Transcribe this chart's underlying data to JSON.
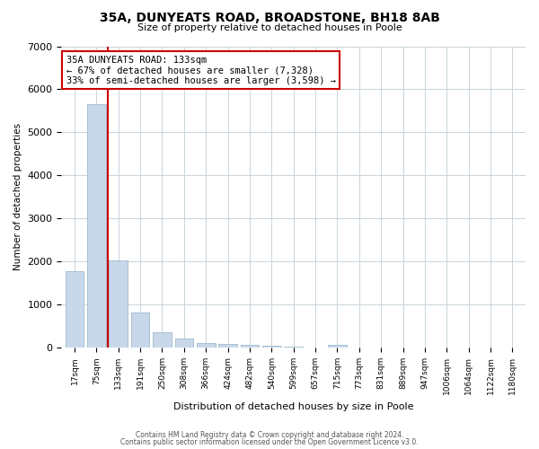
{
  "title": "35A, DUNYEATS ROAD, BROADSTONE, BH18 8AB",
  "subtitle": "Size of property relative to detached houses in Poole",
  "xlabel": "Distribution of detached houses by size in Poole",
  "ylabel": "Number of detached properties",
  "bar_labels": [
    "17sqm",
    "75sqm",
    "133sqm",
    "191sqm",
    "250sqm",
    "308sqm",
    "366sqm",
    "424sqm",
    "482sqm",
    "540sqm",
    "599sqm",
    "657sqm",
    "715sqm",
    "773sqm",
    "831sqm",
    "889sqm",
    "947sqm",
    "1006sqm",
    "1064sqm",
    "1122sqm",
    "1180sqm"
  ],
  "bar_values": [
    1780,
    5650,
    2020,
    810,
    370,
    210,
    110,
    85,
    70,
    55,
    30,
    0,
    60,
    0,
    0,
    0,
    0,
    0,
    0,
    0,
    0
  ],
  "bar_color": "#c8d8ea",
  "bar_edge_color": "#a8c0d0",
  "vline_color": "#cc0000",
  "annotation_title": "35A DUNYEATS ROAD: 133sqm",
  "annotation_line1": "← 67% of detached houses are smaller (7,328)",
  "annotation_line2": "33% of semi-detached houses are larger (3,598) →",
  "annotation_box_facecolor": "white",
  "annotation_box_edgecolor": "#cc0000",
  "ylim": [
    0,
    7000
  ],
  "yticks": [
    0,
    1000,
    2000,
    3000,
    4000,
    5000,
    6000,
    7000
  ],
  "footer1": "Contains HM Land Registry data © Crown copyright and database right 2024.",
  "footer2": "Contains public sector information licensed under the Open Government Licence v3.0.",
  "background_color": "#ffffff",
  "grid_color": "#c8d4dc"
}
